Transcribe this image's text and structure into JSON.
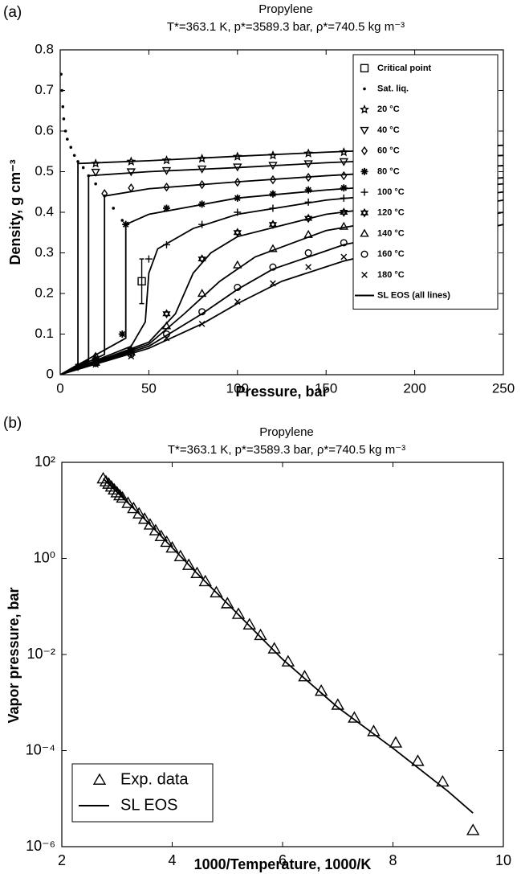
{
  "chart_data": [
    {
      "type": "scatter",
      "label": "(a)",
      "title": "Propylene",
      "subtitle": "T*=363.1 K, p*=3589.3 bar, ρ*=740.5 kg m⁻³",
      "x_label": "Pressure, bar",
      "y_label": "Density, g cm⁻³",
      "xlim": [
        0,
        250
      ],
      "xticks": [
        0,
        50,
        100,
        150,
        200,
        250
      ],
      "ylim": [
        0,
        0.8
      ],
      "yticks": [
        0,
        0.1,
        0.2,
        0.3,
        0.4,
        0.5,
        0.6,
        0.7,
        0.8
      ],
      "ylog": false,
      "grid": false,
      "legend": "upper right",
      "series": [
        {
          "name": "Critical point",
          "color": "#000000",
          "mode": "markers",
          "marker": "square",
          "x": [
            46
          ],
          "values": [
            0.23
          ],
          "errors": [
            0.055
          ]
        },
        {
          "name": "Sat. liq.",
          "color": "#000000",
          "mode": "markers",
          "marker": "dot",
          "x": [
            0.5,
            1,
            1.5,
            2,
            3,
            4,
            6,
            8,
            10,
            13,
            16,
            20,
            25,
            30,
            35
          ],
          "values": [
            0.74,
            0.7,
            0.66,
            0.63,
            0.6,
            0.58,
            0.56,
            0.54,
            0.525,
            0.51,
            0.49,
            0.47,
            0.44,
            0.41,
            0.38
          ]
        },
        {
          "name": "20 °C",
          "color": "#000000",
          "mode": "markers",
          "marker": "star",
          "x": [
            20,
            40,
            60,
            80,
            100,
            120,
            140,
            160
          ],
          "values": [
            0.52,
            0.525,
            0.528,
            0.532,
            0.537,
            0.54,
            0.545,
            0.548
          ]
        },
        {
          "name": "40 °C",
          "color": "#000000",
          "mode": "markers",
          "marker": "triangle-down",
          "x": [
            20,
            40,
            60,
            80,
            100,
            120,
            140,
            160
          ],
          "values": [
            0.499,
            0.5,
            0.503,
            0.507,
            0.512,
            0.516,
            0.52,
            0.525
          ]
        },
        {
          "name": "60 °C",
          "color": "#000000",
          "mode": "markers",
          "marker": "diamond",
          "x": [
            10,
            20,
            25,
            40,
            60,
            80,
            100,
            120,
            140,
            160
          ],
          "values": [
            0.02,
            0.045,
            0.446,
            0.46,
            0.462,
            0.468,
            0.474,
            0.48,
            0.486,
            0.49
          ]
        },
        {
          "name": "80 °C",
          "color": "#000000",
          "mode": "markers",
          "marker": "asterisk",
          "x": [
            10,
            20,
            35,
            37,
            60,
            80,
            100,
            120,
            140,
            160
          ],
          "values": [
            0.02,
            0.04,
            0.1,
            0.37,
            0.41,
            0.42,
            0.435,
            0.445,
            0.455,
            0.46
          ]
        },
        {
          "name": "100 °C",
          "color": "#000000",
          "mode": "markers",
          "marker": "plus",
          "x": [
            10,
            20,
            40,
            50,
            60,
            80,
            100,
            120,
            140,
            160
          ],
          "values": [
            0.02,
            0.035,
            0.065,
            0.285,
            0.32,
            0.37,
            0.4,
            0.41,
            0.425,
            0.435
          ]
        },
        {
          "name": "120 °C",
          "color": "#000000",
          "mode": "markers",
          "marker": "hexagram",
          "x": [
            20,
            40,
            60,
            80,
            100,
            120,
            140,
            160
          ],
          "values": [
            0.03,
            0.06,
            0.15,
            0.285,
            0.35,
            0.37,
            0.385,
            0.4
          ]
        },
        {
          "name": "140 °C",
          "color": "#000000",
          "mode": "markers",
          "marker": "triangle",
          "x": [
            20,
            40,
            60,
            80,
            100,
            120,
            140,
            160
          ],
          "values": [
            0.03,
            0.055,
            0.12,
            0.2,
            0.27,
            0.31,
            0.345,
            0.365
          ]
        },
        {
          "name": "160 °C",
          "color": "#000000",
          "mode": "markers",
          "marker": "circle",
          "x": [
            20,
            40,
            60,
            80,
            100,
            120,
            140,
            160
          ],
          "values": [
            0.028,
            0.05,
            0.1,
            0.155,
            0.215,
            0.265,
            0.3,
            0.325
          ]
        },
        {
          "name": "180 °C",
          "color": "#000000",
          "mode": "markers",
          "marker": "x",
          "x": [
            20,
            40,
            60,
            80,
            100,
            120,
            140,
            160
          ],
          "values": [
            0.025,
            0.045,
            0.09,
            0.125,
            0.18,
            0.225,
            0.265,
            0.29
          ]
        },
        {
          "name": "SL EOS (all lines)",
          "color": "#000000",
          "mode": "lines",
          "x": [
            0,
            10,
            10,
            50,
            100,
            150,
            250,
            null,
            0,
            16,
            16,
            50,
            100,
            150,
            250,
            null,
            0,
            25,
            25,
            50,
            100,
            150,
            250,
            null,
            0,
            37,
            37,
            50,
            100,
            150,
            250,
            null,
            0,
            40,
            48,
            50,
            55,
            75,
            100,
            150,
            250,
            null,
            0,
            50,
            65,
            75,
            85,
            100,
            150,
            250,
            null,
            0,
            50,
            70,
            90,
            110,
            150,
            250,
            null,
            0,
            50,
            80,
            100,
            120,
            160,
            250,
            null,
            0,
            50,
            80,
            100,
            125,
            160,
            250
          ],
          "values": [
            0,
            0.025,
            0.52,
            0.527,
            0.538,
            0.548,
            0.565,
            null,
            0,
            0.035,
            0.49,
            0.5,
            0.51,
            0.522,
            0.54,
            null,
            0,
            0.05,
            0.44,
            0.458,
            0.475,
            0.49,
            0.515,
            null,
            0,
            0.09,
            0.37,
            0.395,
            0.435,
            0.455,
            0.485,
            null,
            0,
            0.07,
            0.13,
            0.25,
            0.31,
            0.36,
            0.395,
            0.43,
            0.47,
            null,
            0,
            0.08,
            0.15,
            0.25,
            0.3,
            0.34,
            0.395,
            0.45,
            null,
            0,
            0.075,
            0.15,
            0.23,
            0.29,
            0.355,
            0.43,
            null,
            0,
            0.07,
            0.15,
            0.21,
            0.26,
            0.32,
            0.4,
            null,
            0,
            0.065,
            0.125,
            0.175,
            0.23,
            0.28,
            0.37
          ]
        }
      ]
    },
    {
      "type": "scatter",
      "label": "(b)",
      "title": "Propylene",
      "subtitle": "T*=363.1 K, p*=3589.3 bar, ρ*=740.5 kg m⁻³",
      "x_label": "1000/Temperature, 1000/K",
      "y_label": "Vapor pressure, bar",
      "xlim": [
        2,
        10
      ],
      "xticks": [
        2,
        4,
        6,
        8,
        10
      ],
      "ylim": [
        1e-06,
        100
      ],
      "ylog": true,
      "yticks": [
        {
          "value": 1e-06,
          "label": "10⁻⁶"
        },
        {
          "value": 0.0001,
          "label": "10⁻⁴"
        },
        {
          "value": 0.01,
          "label": "10⁻²"
        },
        {
          "value": 1,
          "label": "10⁰"
        },
        {
          "value": 100,
          "label": "10²"
        }
      ],
      "grid": false,
      "legend": "lower left",
      "series": [
        {
          "name": "Exp. data",
          "color": "#000000",
          "mode": "markers",
          "marker": "triangle",
          "x": [
            2.75,
            2.8,
            2.85,
            2.9,
            2.95,
            3.0,
            3.05,
            3.1,
            3.2,
            3.3,
            3.4,
            3.5,
            3.6,
            3.7,
            3.8,
            3.9,
            4.0,
            4.15,
            4.3,
            4.45,
            4.6,
            4.8,
            5.0,
            5.2,
            5.4,
            5.6,
            5.85,
            6.1,
            6.4,
            6.7,
            7.0,
            7.3,
            7.65,
            8.05,
            8.45,
            8.9,
            9.45
          ],
          "values": [
            45.7,
            39.8,
            35.5,
            30.9,
            26.9,
            23.4,
            20.4,
            18.2,
            14.1,
            11.0,
            8.51,
            6.61,
            5.01,
            3.8,
            2.88,
            2.19,
            1.66,
            1.1,
            0.724,
            0.49,
            0.331,
            0.195,
            0.115,
            0.0692,
            0.0417,
            0.0251,
            0.0132,
            0.00708,
            0.00347,
            0.00174,
            0.000891,
            0.000479,
            0.000251,
            0.000145,
            6.03e-05,
            2.24e-05,
            2.19e-06
          ]
        },
        {
          "name": "SL EOS",
          "color": "#000000",
          "mode": "lines",
          "x": [
            2.75,
            3.5,
            4.44,
            5,
            6,
            7,
            8,
            9,
            9.45
          ],
          "values": [
            45.7,
            6.61,
            0.501,
            0.115,
            0.00794,
            0.000794,
            0.000112,
            1.41e-05,
            5.01e-06
          ]
        }
      ]
    }
  ]
}
